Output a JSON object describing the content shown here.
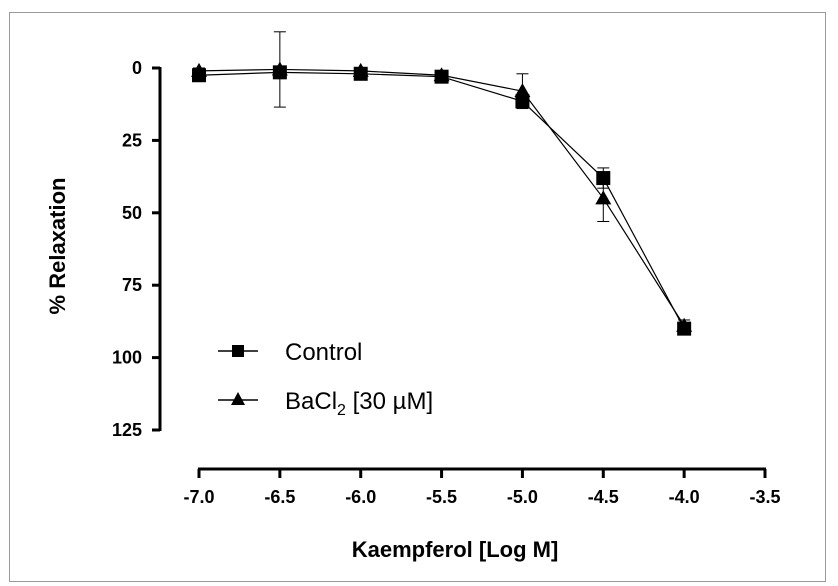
{
  "chart_data": {
    "type": "line",
    "title": "",
    "xlabel": "Kaempferol [Log M]",
    "ylabel": "% Relaxation",
    "xlim": [
      -7.0,
      -3.5
    ],
    "ylim": [
      0,
      125
    ],
    "y_inverted": true,
    "xticks": [
      "-7.0",
      "-6.5",
      "-6.0",
      "-5.5",
      "-5.0",
      "-4.5",
      "-4.0",
      "-3.5"
    ],
    "yticks": [
      "0",
      "25",
      "50",
      "75",
      "100",
      "125"
    ],
    "grid": false,
    "legend": "lower-left",
    "series": [
      {
        "name": "Control",
        "marker": "square",
        "x": [
          -7.0,
          -6.5,
          -6.0,
          -5.5,
          -5.0,
          -4.5,
          -4.0
        ],
        "y": [
          2.5,
          1.5,
          2.0,
          3.0,
          11.5,
          38.0,
          90.0
        ],
        "error": [
          1.0,
          1.0,
          1.0,
          1.0,
          2.0,
          3.5,
          2.0
        ]
      },
      {
        "name": "BaCl",
        "name_subscript": "2",
        "name_suffix": " [30 µM]",
        "marker": "triangle",
        "x": [
          -7.0,
          -6.5,
          -6.0,
          -5.5,
          -5.0,
          -4.5,
          -4.0
        ],
        "y": [
          1.0,
          0.5,
          1.0,
          2.5,
          8.0,
          45.0,
          89.0
        ],
        "error": [
          1.0,
          13.0,
          1.0,
          1.0,
          6.0,
          8.0,
          2.0
        ]
      }
    ]
  }
}
